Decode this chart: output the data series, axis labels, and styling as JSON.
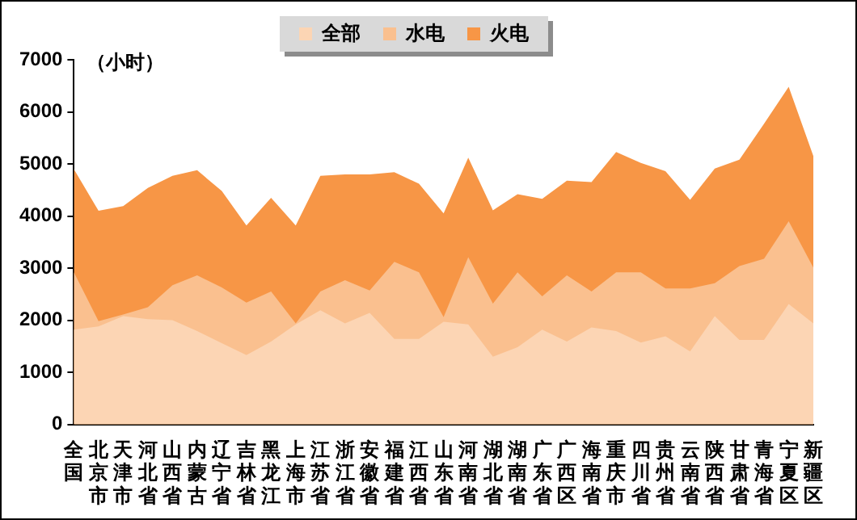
{
  "chart_data": {
    "type": "area",
    "ylabel": "（小时）",
    "legend": "top",
    "categories": [
      "全国",
      "北京市",
      "天津市",
      "河北省",
      "山西省",
      "内蒙古",
      "辽宁省",
      "吉林省",
      "黑龙江",
      "上海市",
      "江苏省",
      "浙江省",
      "安徽省",
      "福建省",
      "江西省",
      "山东省",
      "河南省",
      "湖北省",
      "湖南省",
      "广东省",
      "广西区",
      "海南省",
      "重庆市",
      "四川省",
      "贵州省",
      "云南省",
      "陕西省",
      "甘肃省",
      "青海省",
      "宁夏区",
      "新疆区"
    ],
    "series": [
      {
        "name": "全部",
        "color": "#fcd5b4",
        "values": [
          1820,
          1880,
          2080,
          2020,
          2000,
          1790,
          1560,
          1330,
          1590,
          1920,
          2190,
          1940,
          2140,
          1640,
          1640,
          1970,
          1920,
          1300,
          1480,
          1820,
          1590,
          1860,
          1790,
          1570,
          1690,
          1400,
          2080,
          1620,
          1620,
          2310,
          1940
        ]
      },
      {
        "name": "水电",
        "color": "#fac08f",
        "values": [
          2920,
          1980,
          2110,
          2250,
          2670,
          2860,
          2630,
          2340,
          2550,
          1940,
          2550,
          2770,
          2570,
          3120,
          2920,
          2060,
          3210,
          2320,
          2920,
          2460,
          2860,
          2550,
          2920,
          2920,
          2610,
          2610,
          2710,
          3040,
          3180,
          3900,
          3010
        ]
      },
      {
        "name": "火电",
        "color": "#f79646",
        "values": [
          4900,
          4100,
          4190,
          4540,
          4770,
          4880,
          4480,
          3820,
          4350,
          3820,
          4770,
          4800,
          4800,
          4840,
          4620,
          4050,
          5120,
          4110,
          4420,
          4330,
          4680,
          4650,
          5230,
          5020,
          4860,
          4310,
          4910,
          5080,
          5770,
          6480,
          5150
        ]
      }
    ],
    "ylim": [
      0,
      7000
    ],
    "yticks": [
      0,
      1000,
      2000,
      3000,
      4000,
      5000,
      6000,
      7000
    ],
    "grid": false
  }
}
